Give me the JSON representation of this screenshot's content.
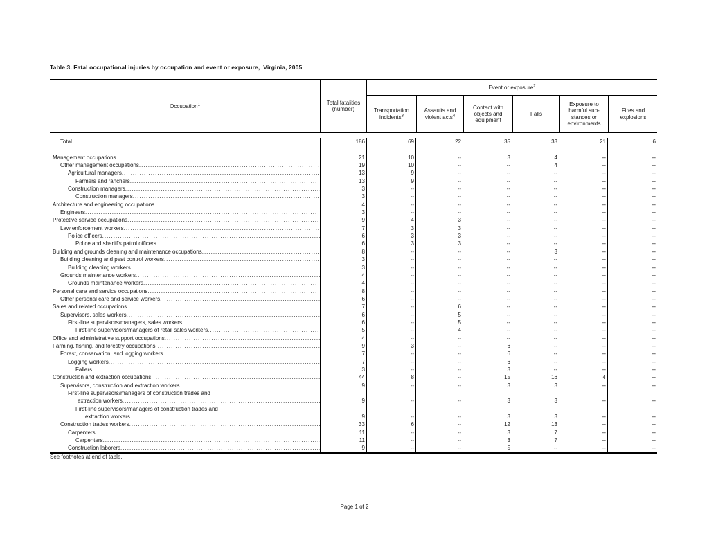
{
  "title": "Table 3. Fatal occupational injuries by occupation and event or exposure,  Virginia, 2005",
  "footnote": "See footnotes at end of table.",
  "page_label": "Page 1 of 2",
  "table": {
    "occupation_header": {
      "text": "Occupation",
      "sup": "1"
    },
    "total_header": {
      "line1": "Total fatalities",
      "line2": "(number)"
    },
    "event_header": {
      "text": "Event or exposure",
      "sup": "2"
    },
    "event_columns": [
      {
        "lines": [
          "Transportation",
          "incidents"
        ],
        "sup": "3"
      },
      {
        "lines": [
          "Assaults and",
          "violent acts"
        ],
        "sup": "4"
      },
      {
        "lines": [
          "Contact with",
          "objects and",
          "equipment"
        ],
        "sup": ""
      },
      {
        "lines": [
          "Falls"
        ],
        "sup": ""
      },
      {
        "lines": [
          "Exposure to",
          "harmful sub-",
          "stances or",
          "environments"
        ],
        "sup": ""
      },
      {
        "lines": [
          "Fires and",
          "explosions"
        ],
        "sup": ""
      }
    ],
    "rows": [
      {
        "indent": 1,
        "label": "Total",
        "values": [
          "186",
          "69",
          "22",
          "35",
          "33",
          "21",
          "6"
        ]
      },
      {
        "blank": true
      },
      {
        "indent": 0,
        "label": "Management occupations",
        "values": [
          "21",
          "10",
          "--",
          "3",
          "4",
          "--",
          "--"
        ]
      },
      {
        "indent": 1,
        "label": "Other management occupations",
        "values": [
          "19",
          "10",
          "--",
          "--",
          "4",
          "--",
          "--"
        ]
      },
      {
        "indent": 2,
        "label": "Agricultural managers",
        "values": [
          "13",
          "9",
          "--",
          "--",
          "--",
          "--",
          "--"
        ]
      },
      {
        "indent": 3,
        "label": "Farmers and ranchers",
        "values": [
          "13",
          "9",
          "--",
          "--",
          "--",
          "--",
          "--"
        ]
      },
      {
        "indent": 2,
        "label": "Construction managers",
        "values": [
          "3",
          "--",
          "--",
          "--",
          "--",
          "--",
          "--"
        ]
      },
      {
        "indent": 3,
        "label": "Construction managers",
        "values": [
          "3",
          "--",
          "--",
          "--",
          "--",
          "--",
          "--"
        ]
      },
      {
        "indent": 0,
        "label": "Architecture and engineering occupations",
        "values": [
          "4",
          "--",
          "--",
          "--",
          "--",
          "--",
          "--"
        ]
      },
      {
        "indent": 1,
        "label": "Engineers",
        "values": [
          "3",
          "--",
          "--",
          "--",
          "--",
          "--",
          "--"
        ]
      },
      {
        "indent": 0,
        "label": "Protective service occupations",
        "values": [
          "9",
          "4",
          "3",
          "--",
          "--",
          "--",
          "--"
        ]
      },
      {
        "indent": 1,
        "label": "Law enforcement workers",
        "values": [
          "7",
          "3",
          "3",
          "--",
          "--",
          "--",
          "--"
        ]
      },
      {
        "indent": 2,
        "label": "Police officers",
        "values": [
          "6",
          "3",
          "3",
          "--",
          "--",
          "--",
          "--"
        ]
      },
      {
        "indent": 3,
        "label": "Police and sheriff's patrol officers",
        "values": [
          "6",
          "3",
          "3",
          "--",
          "--",
          "--",
          "--"
        ]
      },
      {
        "indent": 0,
        "label": "Building and grounds cleaning and maintenance occupations",
        "values": [
          "8",
          "--",
          "--",
          "--",
          "3",
          "--",
          "--"
        ]
      },
      {
        "indent": 1,
        "label": "Building cleaning and pest control workers",
        "values": [
          "3",
          "--",
          "--",
          "--",
          "--",
          "--",
          "--"
        ]
      },
      {
        "indent": 2,
        "label": "Building cleaning workers",
        "values": [
          "3",
          "--",
          "--",
          "--",
          "--",
          "--",
          "--"
        ]
      },
      {
        "indent": 1,
        "label": "Grounds maintenance workers",
        "values": [
          "4",
          "--",
          "--",
          "--",
          "--",
          "--",
          "--"
        ]
      },
      {
        "indent": 2,
        "label": "Grounds maintenance workers",
        "values": [
          "4",
          "--",
          "--",
          "--",
          "--",
          "--",
          "--"
        ]
      },
      {
        "indent": 0,
        "label": "Personal care and service occupations",
        "values": [
          "8",
          "--",
          "--",
          "--",
          "--",
          "--",
          "--"
        ]
      },
      {
        "indent": 1,
        "label": "Other personal care and service workers",
        "values": [
          "6",
          "--",
          "--",
          "--",
          "--",
          "--",
          "--"
        ]
      },
      {
        "indent": 0,
        "label": "Sales and related occupations",
        "values": [
          "7",
          "--",
          "6",
          "--",
          "--",
          "--",
          "--"
        ]
      },
      {
        "indent": 1,
        "label": "Supervisors, sales workers",
        "values": [
          "6",
          "--",
          "5",
          "--",
          "--",
          "--",
          "--"
        ]
      },
      {
        "indent": 2,
        "label": "First-line supervisors/managers, sales workers",
        "values": [
          "6",
          "--",
          "5",
          "--",
          "--",
          "--",
          "--"
        ]
      },
      {
        "indent": 3,
        "label": "First-line supervisors/managers of retail sales workers",
        "values": [
          "5",
          "--",
          "4",
          "--",
          "--",
          "--",
          "--"
        ]
      },
      {
        "indent": 0,
        "label": "Office and administrative support occupations",
        "values": [
          "4",
          "--",
          "--",
          "--",
          "--",
          "--",
          "--"
        ]
      },
      {
        "indent": 0,
        "label": "Farming, fishing, and forestry occupations",
        "values": [
          "9",
          "3",
          "--",
          "6",
          "--",
          "--",
          "--"
        ]
      },
      {
        "indent": 1,
        "label": "Forest, conservation, and logging workers",
        "values": [
          "7",
          "--",
          "--",
          "6",
          "--",
          "--",
          "--"
        ]
      },
      {
        "indent": 2,
        "label": "Logging workers",
        "values": [
          "7",
          "--",
          "--",
          "6",
          "--",
          "--",
          "--"
        ]
      },
      {
        "indent": 3,
        "label": "Fallers",
        "values": [
          "3",
          "--",
          "--",
          "3",
          "--",
          "--",
          "--"
        ]
      },
      {
        "indent": 0,
        "label": "Construction and extraction occupations",
        "values": [
          "44",
          "8",
          "--",
          "15",
          "16",
          "4",
          "--"
        ]
      },
      {
        "indent": 1,
        "label": "Supervisors, construction and extraction workers",
        "values": [
          "9",
          "--",
          "--",
          "3",
          "3",
          "--",
          "--"
        ]
      },
      {
        "indent": 2,
        "label": "First-line supervisors/managers of construction trades and",
        "label2": "extraction workers",
        "values": [
          "9",
          "--",
          "--",
          "3",
          "3",
          "--",
          "--"
        ]
      },
      {
        "indent": 3,
        "label": "First-line supervisors/managers of construction trades and",
        "label2": "extraction workers",
        "values": [
          "9",
          "--",
          "--",
          "3",
          "3",
          "--",
          "--"
        ]
      },
      {
        "indent": 1,
        "label": "Construction trades workers",
        "values": [
          "33",
          "6",
          "--",
          "12",
          "13",
          "--",
          "--"
        ]
      },
      {
        "indent": 2,
        "label": "Carpenters",
        "values": [
          "11",
          "--",
          "--",
          "3",
          "7",
          "--",
          "--"
        ]
      },
      {
        "indent": 3,
        "label": "Carpenters",
        "values": [
          "11",
          "--",
          "--",
          "3",
          "7",
          "--",
          "--"
        ]
      },
      {
        "indent": 2,
        "label": "Construction laborers",
        "values": [
          "9",
          "--",
          "--",
          "5",
          "--",
          "--",
          "--"
        ]
      }
    ]
  }
}
